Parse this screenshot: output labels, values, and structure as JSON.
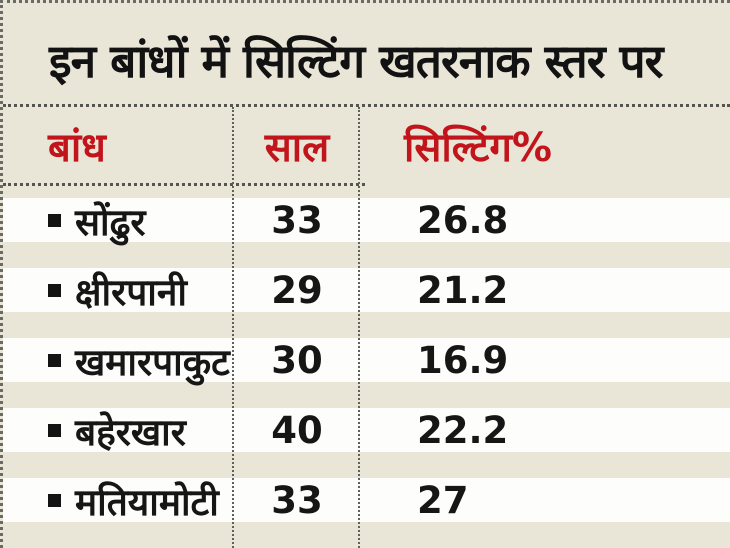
{
  "title": "इन बांधों में सिल्टिंग खतरनाक स्तर पर",
  "colors": {
    "background": "#e9e6d8",
    "row_band": "#fdfdfb",
    "header_text": "#c2151b",
    "title_text": "#121212",
    "body_text": "#161616",
    "dotted_line": "#55554f"
  },
  "icons": {
    "bullet": "■"
  },
  "table": {
    "columns": [
      {
        "key": "dam",
        "label": "बांध"
      },
      {
        "key": "year",
        "label": "साल"
      },
      {
        "key": "silting",
        "label": "सिल्टिंग%"
      }
    ],
    "rows": [
      {
        "dam": "सोंढुर",
        "year": "33",
        "silting": "26.8"
      },
      {
        "dam": "क्षीरपानी",
        "year": "29",
        "silting": "21.2"
      },
      {
        "dam": "खमारपाकुट",
        "year": "30",
        "silting": "16.9"
      },
      {
        "dam": "बहेरखार",
        "year": "40",
        "silting": "22.2"
      },
      {
        "dam": "मतियामोटी",
        "year": "33",
        "silting": "27"
      }
    ]
  },
  "chart_data": {
    "type": "table",
    "title": "इन बांधों में सिल्टिंग खतरनाक स्तर पर",
    "columns": [
      "बांध",
      "साल",
      "सिल्टिंग%"
    ],
    "rows": [
      [
        "सोंढुर",
        33,
        26.8
      ],
      [
        "क्षीरपानी",
        29,
        21.2
      ],
      [
        "खमारपाकुट",
        30,
        16.9
      ],
      [
        "बहेरखार",
        40,
        22.2
      ],
      [
        "मतियामोटी",
        33,
        27
      ]
    ]
  }
}
